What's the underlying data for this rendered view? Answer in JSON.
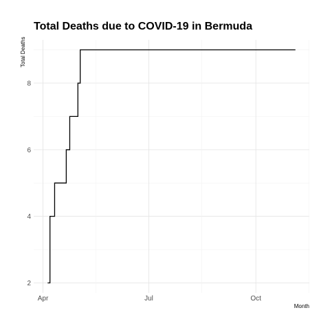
{
  "chart_data": {
    "type": "line",
    "title": "Total Deaths due to COVID-19 in Bermuda",
    "xlabel": "Month",
    "ylabel": "Total Deaths",
    "x_tick_labels": [
      {
        "date": "2020-04-01",
        "label": "Apr"
      },
      {
        "date": "2020-07-01",
        "label": "Jul"
      },
      {
        "date": "2020-10-01",
        "label": "Oct"
      }
    ],
    "y_ticks": [
      2,
      4,
      6,
      8
    ],
    "xlim": [
      "2020-03-24",
      "2020-11-16"
    ],
    "ylim": [
      1.7,
      9.3
    ],
    "step": true,
    "grid": true,
    "series": [
      {
        "color": "#000000",
        "points": [
          {
            "x": "2020-04-05",
            "y": 2
          },
          {
            "x": "2020-04-07",
            "y": 4
          },
          {
            "x": "2020-04-11",
            "y": 5
          },
          {
            "x": "2020-04-21",
            "y": 6
          },
          {
            "x": "2020-04-24",
            "y": 7
          },
          {
            "x": "2020-05-01",
            "y": 8
          },
          {
            "x": "2020-05-03",
            "y": 9
          },
          {
            "x": "2020-11-04",
            "y": 9
          }
        ]
      }
    ]
  }
}
